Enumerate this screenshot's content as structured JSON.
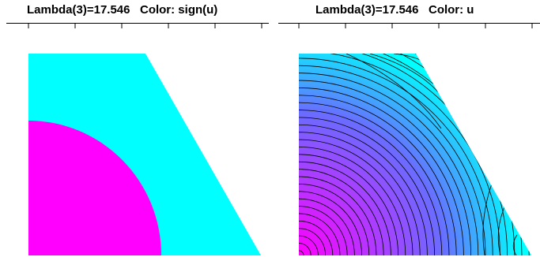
{
  "panels": {
    "left": {
      "title": "Lambda(3)=17.546   Color: sign(u)",
      "colors": {
        "positive": "#00ffff",
        "negative": "#ff00ff"
      }
    },
    "right": {
      "title": "Lambda(3)=17.546   Color: u",
      "colors": {
        "high": "#00ffff",
        "low": "#ff00ff",
        "contour": "#000000"
      }
    }
  },
  "axis_color": "#000000"
}
